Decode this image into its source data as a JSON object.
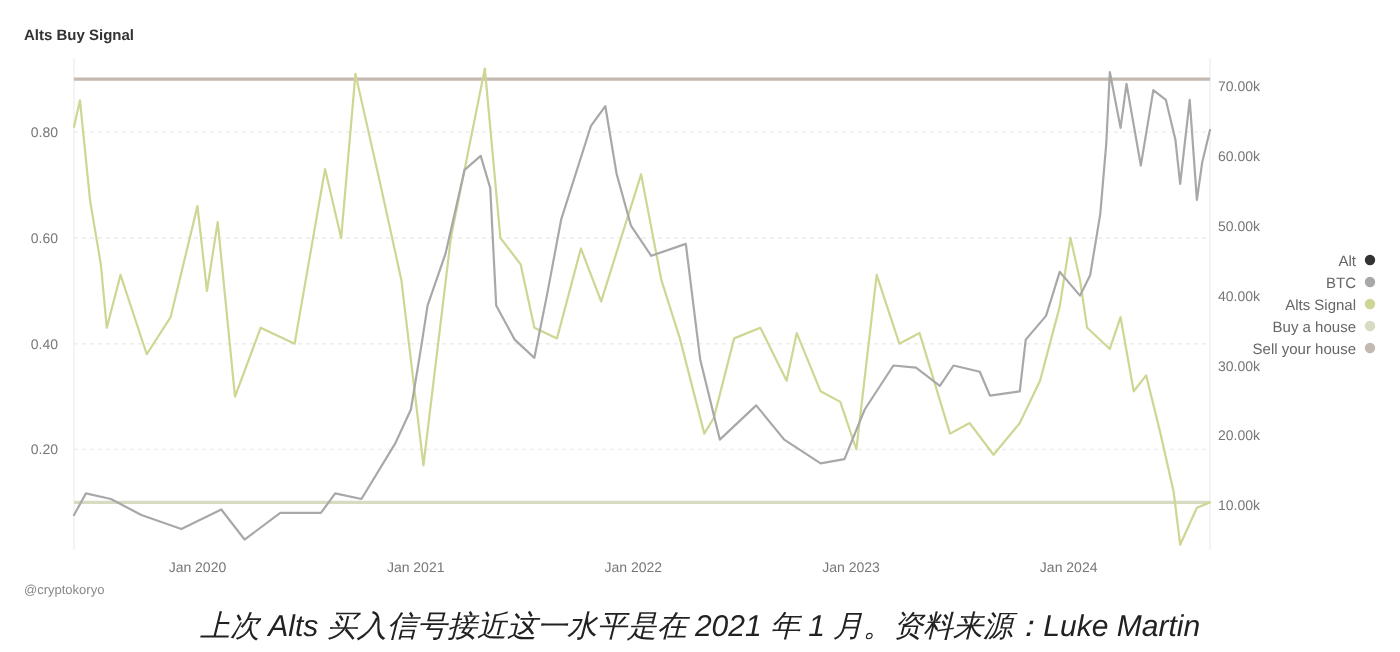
{
  "chart_data": {
    "type": "line",
    "title": "Alts Buy Signal",
    "annotations": [
      "@cryptokoryo",
      "上次 Alts 买入信号接近这一水平是在 2021 年 1 月。资料来源：Luke Martin"
    ],
    "xlim": [
      "2019-06-08",
      "2024-08-25"
    ],
    "xticks": [
      {
        "value": "2020-01-01",
        "label": "Jan 2020"
      },
      {
        "value": "2021-01-01",
        "label": "Jan 2021"
      },
      {
        "value": "2022-01-01",
        "label": "Jan 2022"
      },
      {
        "value": "2023-01-01",
        "label": "Jan 2023"
      },
      {
        "value": "2024-01-01",
        "label": "Jan 2024"
      }
    ],
    "ylim": [
      0.01,
      0.94
    ],
    "yticks": [
      {
        "value": 0.2,
        "label": "0.20"
      },
      {
        "value": 0.4,
        "label": "0.40"
      },
      {
        "value": 0.6,
        "label": "0.60"
      },
      {
        "value": 0.8,
        "label": "0.80"
      }
    ],
    "y2lim": [
      3600,
      74000
    ],
    "y2ticks": [
      {
        "value": 10000,
        "label": "10.00k"
      },
      {
        "value": 20000,
        "label": "20.00k"
      },
      {
        "value": 30000,
        "label": "30.00k"
      },
      {
        "value": 40000,
        "label": "40.00k"
      },
      {
        "value": 50000,
        "label": "50.00k"
      },
      {
        "value": 60000,
        "label": "60.00k"
      },
      {
        "value": 70000,
        "label": "70.00k"
      }
    ],
    "grid": "y",
    "legend": "right",
    "marker": "none",
    "line_style": "solid",
    "series": [
      {
        "name": "Alt",
        "color": "#333333"
      },
      {
        "name": "BTC",
        "color": "#a8a8a8",
        "axis": "y2",
        "x": [
          "2019-06-08",
          "2019-06-28",
          "2019-08-09",
          "2019-09-29",
          "2019-12-05",
          "2020-02-10",
          "2020-03-20",
          "2020-05-19",
          "2020-07-26",
          "2020-08-19",
          "2020-10-02",
          "2020-11-28",
          "2020-12-24",
          "2021-01-11",
          "2021-01-21",
          "2021-02-20",
          "2021-03-24",
          "2021-04-20",
          "2021-05-06",
          "2021-05-16",
          "2021-06-16",
          "2021-07-19",
          "2021-08-09",
          "2021-09-02",
          "2021-10-22",
          "2021-11-15",
          "2021-12-04",
          "2021-12-28",
          "2022-01-31",
          "2022-03-30",
          "2022-04-23",
          "2022-05-26",
          "2022-07-26",
          "2022-09-11",
          "2022-11-11",
          "2022-12-21",
          "2023-01-24",
          "2023-03-13",
          "2023-04-20",
          "2023-05-30",
          "2023-06-22",
          "2023-08-05",
          "2023-08-22",
          "2023-10-11",
          "2023-10-21",
          "2023-11-24",
          "2023-12-17",
          "2024-01-20",
          "2024-02-06",
          "2024-02-23",
          "2024-03-04",
          "2024-03-10",
          "2024-03-28",
          "2024-04-07",
          "2024-05-01",
          "2024-05-22",
          "2024-06-12",
          "2024-06-28",
          "2024-07-06",
          "2024-07-22",
          "2024-08-03",
          "2024-08-12",
          "2024-08-25"
        ],
        "values": [
          8600,
          11700,
          10900,
          8600,
          6600,
          9400,
          5100,
          8900,
          8900,
          11700,
          10900,
          18900,
          23700,
          33100,
          38600,
          46000,
          58000,
          60000,
          55400,
          38600,
          33700,
          31100,
          40000,
          50900,
          64300,
          67100,
          57400,
          50000,
          45700,
          47400,
          30900,
          19400,
          24300,
          19400,
          16000,
          16600,
          23700,
          30000,
          29700,
          27100,
          30000,
          29100,
          25700,
          26300,
          33700,
          37100,
          43400,
          40000,
          42900,
          51700,
          61700,
          72000,
          64000,
          70300,
          58600,
          69400,
          68000,
          62300,
          56000,
          68000,
          53700,
          59100,
          63700
        ]
      },
      {
        "name": "Alts Signal",
        "color": "#cfd592",
        "x": [
          "2019-06-08",
          "2019-06-18",
          "2019-07-05",
          "2019-07-23",
          "2019-08-02",
          "2019-08-25",
          "2019-10-08",
          "2019-11-17",
          "2020-01-01",
          "2020-01-17",
          "2020-02-04",
          "2020-03-04",
          "2020-04-16",
          "2020-06-12",
          "2020-08-02",
          "2020-08-29",
          "2020-09-22",
          "2020-11-05",
          "2020-12-08",
          "2021-01-14",
          "2021-03-01",
          "2021-04-27",
          "2021-05-23",
          "2021-06-26",
          "2021-07-19",
          "2021-08-26",
          "2021-10-05",
          "2021-11-08",
          "2022-01-14",
          "2022-02-17",
          "2022-03-20",
          "2022-04-30",
          "2022-05-16",
          "2022-06-19",
          "2022-08-02",
          "2022-09-15",
          "2022-10-02",
          "2022-11-11",
          "2022-12-14",
          "2023-01-10",
          "2023-02-13",
          "2023-03-23",
          "2023-04-26",
          "2023-06-16",
          "2023-07-19",
          "2023-08-28",
          "2023-10-11",
          "2023-11-14",
          "2023-12-17",
          "2024-01-04",
          "2024-01-20",
          "2024-02-01",
          "2024-03-10",
          "2024-03-28",
          "2024-04-19",
          "2024-05-10",
          "2024-06-03",
          "2024-06-25",
          "2024-07-06",
          "2024-08-03",
          "2024-08-25"
        ],
        "values": [
          0.81,
          0.86,
          0.67,
          0.55,
          0.43,
          0.53,
          0.38,
          0.45,
          0.66,
          0.5,
          0.63,
          0.3,
          0.43,
          0.4,
          0.73,
          0.6,
          0.91,
          0.69,
          0.52,
          0.17,
          0.6,
          0.92,
          0.6,
          0.55,
          0.43,
          0.41,
          0.58,
          0.48,
          0.72,
          0.52,
          0.41,
          0.23,
          0.26,
          0.41,
          0.43,
          0.33,
          0.42,
          0.31,
          0.29,
          0.2,
          0.53,
          0.4,
          0.42,
          0.23,
          0.25,
          0.19,
          0.25,
          0.33,
          0.47,
          0.6,
          0.52,
          0.43,
          0.39,
          0.45,
          0.31,
          0.34,
          0.23,
          0.12,
          0.02,
          0.09,
          0.1
        ]
      }
    ],
    "ref_lines": [
      {
        "axis": "y",
        "value": 0.1,
        "label": "Buy a house",
        "color": "#d7dbc2"
      },
      {
        "axis": "y",
        "value": 0.9,
        "label": "Sell your house",
        "color": "#c4b9b0"
      }
    ]
  }
}
